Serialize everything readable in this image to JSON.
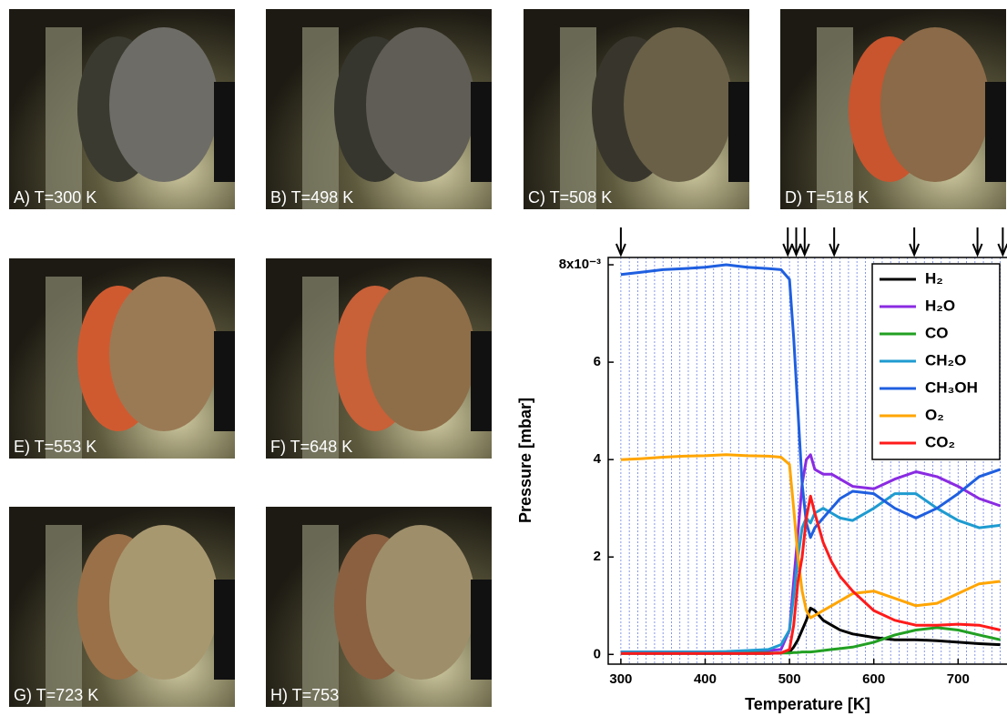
{
  "photos": [
    {
      "caption": "A) T=300 K"
    },
    {
      "caption": "B) T=498 K"
    },
    {
      "caption": "C) T=508 K"
    },
    {
      "caption": "D) T=518 K"
    },
    {
      "caption": "E) T=553 K"
    },
    {
      "caption": "F) T=648 K"
    },
    {
      "caption": "G) T=723 K"
    },
    {
      "caption": "H) T=753"
    }
  ],
  "chart_data": {
    "type": "line",
    "xlabel": "Temperature [K]",
    "ylabel": "Pressure [mbar]",
    "xlim": [
      285,
      758
    ],
    "ylim": [
      -0.2,
      8.15
    ],
    "xticks": [
      300,
      400,
      500,
      600,
      700
    ],
    "yticks": [
      0,
      2,
      4,
      6,
      {
        "value": 8,
        "label": "8x10⁻³"
      }
    ],
    "arrows": [
      300,
      498,
      508,
      518,
      553,
      648,
      723,
      753
    ],
    "vlines": [
      300,
      310,
      320,
      330,
      340,
      350,
      360,
      370,
      380,
      390,
      400,
      410,
      420,
      430,
      440,
      450,
      460,
      470,
      480,
      490,
      500,
      510,
      520,
      530,
      540,
      550,
      560,
      570,
      580,
      590,
      600,
      610,
      620,
      630,
      640,
      650,
      660,
      670,
      680,
      690,
      700,
      710,
      720,
      730,
      740,
      750
    ],
    "x": [
      300,
      325,
      350,
      375,
      400,
      425,
      450,
      475,
      490,
      500,
      505,
      510,
      515,
      520,
      525,
      530,
      540,
      550,
      560,
      575,
      600,
      625,
      650,
      675,
      700,
      725,
      750
    ],
    "series": [
      {
        "name": "H₂",
        "color": "#000000",
        "values": [
          0.02,
          0.02,
          0.02,
          0.02,
          0.02,
          0.02,
          0.02,
          0.02,
          0.03,
          0.05,
          0.15,
          0.3,
          0.5,
          0.7,
          0.95,
          0.9,
          0.7,
          0.6,
          0.5,
          0.42,
          0.35,
          0.3,
          0.3,
          0.28,
          0.25,
          0.22,
          0.2
        ]
      },
      {
        "name": "H₂O",
        "color": "#8a2be2",
        "values": [
          0.05,
          0.05,
          0.05,
          0.05,
          0.05,
          0.05,
          0.06,
          0.08,
          0.1,
          0.5,
          1.5,
          2.5,
          3.5,
          4.0,
          4.1,
          3.8,
          3.7,
          3.7,
          3.6,
          3.45,
          3.4,
          3.6,
          3.75,
          3.65,
          3.45,
          3.2,
          3.05
        ]
      },
      {
        "name": "CO",
        "color": "#22a022",
        "values": [
          0.03,
          0.03,
          0.03,
          0.03,
          0.03,
          0.03,
          0.03,
          0.03,
          0.03,
          0.03,
          0.04,
          0.04,
          0.05,
          0.05,
          0.05,
          0.06,
          0.08,
          0.1,
          0.12,
          0.15,
          0.25,
          0.4,
          0.5,
          0.55,
          0.5,
          0.4,
          0.3
        ]
      },
      {
        "name": "CH₂O",
        "color": "#1e9bd0",
        "values": [
          0.05,
          0.05,
          0.05,
          0.05,
          0.05,
          0.06,
          0.08,
          0.1,
          0.2,
          0.5,
          1.2,
          2.0,
          2.6,
          2.8,
          2.7,
          2.9,
          3.0,
          2.9,
          2.8,
          2.75,
          3.0,
          3.3,
          3.3,
          3.0,
          2.75,
          2.6,
          2.65
        ]
      },
      {
        "name": "CH₃OH",
        "color": "#1f5fe0",
        "values": [
          7.8,
          7.85,
          7.9,
          7.92,
          7.95,
          8.0,
          7.95,
          7.92,
          7.9,
          7.7,
          6.5,
          5.0,
          3.5,
          2.7,
          2.4,
          2.6,
          2.8,
          3.0,
          3.2,
          3.35,
          3.3,
          3.0,
          2.8,
          3.0,
          3.3,
          3.65,
          3.8
        ]
      },
      {
        "name": "O₂",
        "color": "#ffa500",
        "values": [
          4.0,
          4.02,
          4.05,
          4.07,
          4.08,
          4.1,
          4.08,
          4.07,
          4.05,
          3.9,
          3.0,
          2.0,
          1.3,
          0.9,
          0.75,
          0.8,
          0.9,
          1.0,
          1.1,
          1.25,
          1.3,
          1.15,
          1.0,
          1.05,
          1.25,
          1.45,
          1.5
        ]
      },
      {
        "name": "CO₂",
        "color": "#ff1a1a",
        "values": [
          0.02,
          0.02,
          0.02,
          0.02,
          0.02,
          0.02,
          0.02,
          0.02,
          0.03,
          0.1,
          0.6,
          1.5,
          2.0,
          2.8,
          3.25,
          2.9,
          2.3,
          1.9,
          1.6,
          1.3,
          0.9,
          0.7,
          0.6,
          0.6,
          0.62,
          0.6,
          0.5
        ]
      }
    ]
  }
}
